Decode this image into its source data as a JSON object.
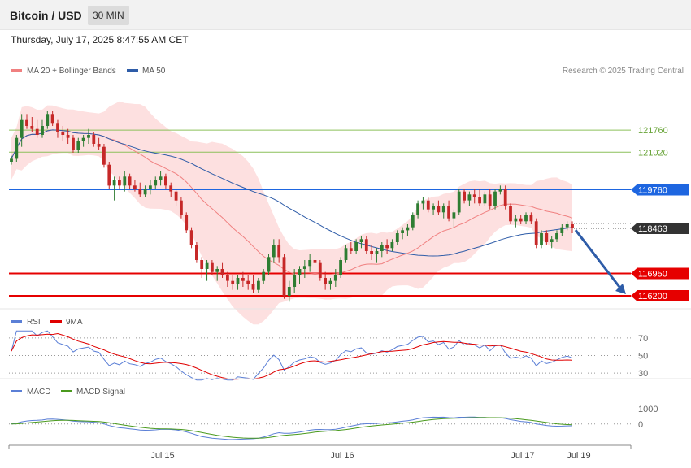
{
  "header": {
    "pair": "Bitcoin / USD",
    "interval": "30 MIN",
    "datetime": "Thursday, July 17, 2025 8:47:55 AM CET"
  },
  "legend": {
    "ma20": {
      "label": "MA 20 + Bollinger Bands",
      "color": "#f08080"
    },
    "ma50": {
      "label": "MA 50",
      "color": "#2e5ca8"
    },
    "credit": "Research © 2025 Trading Central",
    "rsi": {
      "label": "RSI",
      "color": "#5b7fd6"
    },
    "rsi_ma": {
      "label": "9MA",
      "color": "#e00000"
    },
    "macd": {
      "label": "MACD",
      "color": "#5b7fd6"
    },
    "macd_signal": {
      "label": "MACD Signal",
      "color": "#4a9a1e"
    }
  },
  "chart_data": {
    "type": "candlestick",
    "price_levels": [
      {
        "value": 121760,
        "label": "121760",
        "kind": "resistance",
        "color": "#8cc05a"
      },
      {
        "value": 121020,
        "label": "121020",
        "kind": "resistance",
        "color": "#8cc05a"
      },
      {
        "value": 119760,
        "label": "119760",
        "kind": "pivot",
        "color": "#1e66e0"
      },
      {
        "value": 118463,
        "label": "118463",
        "kind": "last",
        "color": "#333333"
      },
      {
        "value": 116950,
        "label": "116950",
        "kind": "support",
        "color": "#e60000"
      },
      {
        "value": 116200,
        "label": "116200",
        "kind": "support",
        "color": "#e60000"
      }
    ],
    "candles": [
      [
        120700,
        120900,
        120600,
        120800
      ],
      [
        120800,
        121600,
        120700,
        121500
      ],
      [
        121500,
        122300,
        121200,
        122100
      ],
      [
        122100,
        122300,
        121800,
        121900
      ],
      [
        121900,
        122200,
        121700,
        121800
      ],
      [
        121800,
        122100,
        121500,
        121600
      ],
      [
        121600,
        122100,
        121500,
        121900
      ],
      [
        121900,
        122400,
        121800,
        122300
      ],
      [
        122300,
        122400,
        121900,
        122000
      ],
      [
        122000,
        122100,
        121500,
        121700
      ],
      [
        121700,
        121900,
        121400,
        121600
      ],
      [
        121600,
        121800,
        121300,
        121500
      ],
      [
        121500,
        121600,
        121000,
        121100
      ],
      [
        121100,
        121500,
        121000,
        121400
      ],
      [
        121400,
        121600,
        121200,
        121500
      ],
      [
        121500,
        121800,
        121300,
        121600
      ],
      [
        121600,
        121700,
        121200,
        121300
      ],
      [
        121300,
        121500,
        121100,
        121200
      ],
      [
        121200,
        121300,
        120500,
        120600
      ],
      [
        120600,
        120700,
        119800,
        119900
      ],
      [
        119900,
        120200,
        119400,
        120100
      ],
      [
        120100,
        120200,
        119800,
        119900
      ],
      [
        119900,
        120400,
        119700,
        120200
      ],
      [
        120200,
        120300,
        119800,
        119900
      ],
      [
        119900,
        120100,
        119700,
        119800
      ],
      [
        119800,
        120000,
        119500,
        119600
      ],
      [
        119600,
        119900,
        119500,
        119800
      ],
      [
        119800,
        120100,
        119600,
        119900
      ],
      [
        119900,
        120200,
        119800,
        120100
      ],
      [
        120100,
        120400,
        119900,
        120200
      ],
      [
        120200,
        120300,
        119800,
        119900
      ],
      [
        119900,
        120000,
        119500,
        119700
      ],
      [
        119700,
        119800,
        119200,
        119400
      ],
      [
        119400,
        119500,
        118800,
        118900
      ],
      [
        118900,
        119000,
        118300,
        118400
      ],
      [
        118400,
        118500,
        117800,
        117900
      ],
      [
        117900,
        118000,
        117300,
        117400
      ],
      [
        117400,
        117500,
        116800,
        117100
      ],
      [
        117100,
        117400,
        116700,
        117300
      ],
      [
        117300,
        117400,
        116900,
        117000
      ],
      [
        117000,
        117200,
        116700,
        117100
      ],
      [
        117100,
        117300,
        116800,
        116900
      ],
      [
        116900,
        117000,
        116500,
        116700
      ],
      [
        116700,
        116900,
        116400,
        116600
      ],
      [
        116600,
        116900,
        116400,
        116800
      ],
      [
        116800,
        117000,
        116500,
        116700
      ],
      [
        116700,
        116900,
        116400,
        116600
      ],
      [
        116600,
        116900,
        116300,
        116400
      ],
      [
        116400,
        116800,
        116300,
        116700
      ],
      [
        116700,
        117100,
        116600,
        117000
      ],
      [
        117000,
        117600,
        116900,
        117500
      ],
      [
        117500,
        118100,
        117300,
        117900
      ],
      [
        117900,
        118100,
        117300,
        117500
      ],
      [
        117500,
        117600,
        116100,
        116200
      ],
      [
        116200,
        116700,
        116000,
        116500
      ],
      [
        116500,
        117100,
        116300,
        116900
      ],
      [
        116900,
        117200,
        116600,
        117100
      ],
      [
        117100,
        117400,
        116800,
        117200
      ],
      [
        117200,
        117600,
        117000,
        117400
      ],
      [
        117400,
        117700,
        117200,
        117300
      ],
      [
        117300,
        117400,
        116700,
        116800
      ],
      [
        116800,
        117000,
        116400,
        116600
      ],
      [
        116600,
        116800,
        116400,
        116700
      ],
      [
        116700,
        117100,
        116500,
        116900
      ],
      [
        116900,
        117500,
        116800,
        117400
      ],
      [
        117400,
        117900,
        117300,
        117800
      ],
      [
        117800,
        118000,
        117600,
        117700
      ],
      [
        117700,
        118100,
        117600,
        118000
      ],
      [
        118000,
        118200,
        117800,
        118100
      ],
      [
        118100,
        118200,
        117600,
        117700
      ],
      [
        117700,
        117900,
        117400,
        117600
      ],
      [
        117600,
        117800,
        117300,
        117700
      ],
      [
        117700,
        118000,
        117500,
        117900
      ],
      [
        117900,
        118100,
        117600,
        117800
      ],
      [
        117800,
        118100,
        117700,
        118000
      ],
      [
        118000,
        118400,
        117900,
        118300
      ],
      [
        118300,
        118500,
        118100,
        118400
      ],
      [
        118400,
        118600,
        118200,
        118500
      ],
      [
        118500,
        119000,
        118400,
        118900
      ],
      [
        118900,
        119400,
        118800,
        119300
      ],
      [
        119300,
        119500,
        119100,
        119400
      ],
      [
        119400,
        119500,
        119000,
        119100
      ],
      [
        119100,
        119300,
        118900,
        119200
      ],
      [
        119200,
        119400,
        118900,
        119000
      ],
      [
        119000,
        119300,
        118800,
        119200
      ],
      [
        119200,
        119400,
        118700,
        118800
      ],
      [
        118800,
        119100,
        118500,
        119000
      ],
      [
        119000,
        119800,
        118900,
        119700
      ],
      [
        119700,
        119800,
        119300,
        119400
      ],
      [
        119400,
        119700,
        119200,
        119600
      ],
      [
        119600,
        119800,
        119300,
        119500
      ],
      [
        119500,
        119800,
        119200,
        119300
      ],
      [
        119300,
        119700,
        119200,
        119600
      ],
      [
        119600,
        119800,
        119100,
        119200
      ],
      [
        119200,
        119800,
        119100,
        119700
      ],
      [
        119700,
        119900,
        119600,
        119800
      ],
      [
        119800,
        119900,
        119100,
        119200
      ],
      [
        119200,
        119300,
        118600,
        118700
      ],
      [
        118700,
        118900,
        118500,
        118800
      ],
      [
        118800,
        118900,
        118600,
        118700
      ],
      [
        118700,
        119000,
        118600,
        118900
      ],
      [
        118900,
        119000,
        118600,
        118700
      ],
      [
        118700,
        118800,
        117800,
        117900
      ],
      [
        117900,
        118400,
        117800,
        118300
      ],
      [
        118300,
        118400,
        117900,
        118000
      ],
      [
        118000,
        118200,
        117800,
        118100
      ],
      [
        118100,
        118400,
        118000,
        118300
      ],
      [
        118300,
        118600,
        118200,
        118500
      ],
      [
        118500,
        118700,
        118400,
        118600
      ],
      [
        118600,
        118700,
        118300,
        118463
      ]
    ],
    "forecast": {
      "from": 118463,
      "to": 116200
    },
    "price_range": [
      115900,
      123400
    ],
    "x_ticks": [
      "Jul 15",
      "Jul 16",
      "Jul 17",
      "Jul 19"
    ],
    "rsi": {
      "levels": [
        70,
        50,
        30
      ],
      "range": [
        20,
        80
      ]
    },
    "macd": {
      "levels": [
        "1000",
        "0"
      ],
      "range": [
        -1400,
        1700
      ]
    }
  }
}
